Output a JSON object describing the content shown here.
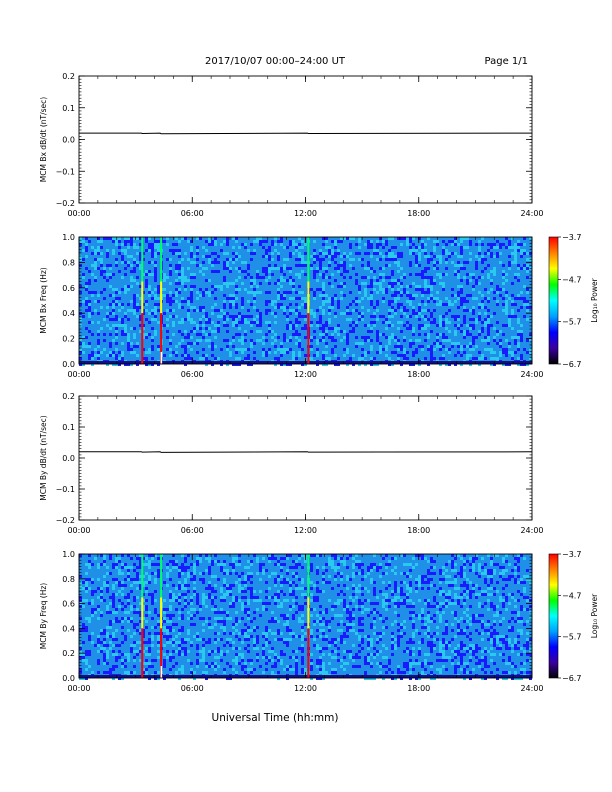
{
  "header": {
    "title": "2017/10/07  00:00–24:00 UT",
    "page": "Page 1/1"
  },
  "xlabel": "Universal Time (hh:mm)",
  "colors": {
    "trace": "#000000",
    "spectrogram_background": "#1f8fe8",
    "spectrogram_palette": [
      "#1a1aff",
      "#1f8fe8",
      "#29c9f0",
      "#00ff66",
      "#ffff00",
      "#ff0000"
    ],
    "colorbar": [
      "#000000",
      "#3a00a0",
      "#0000ff",
      "#00a0ff",
      "#00ffff",
      "#00ff00",
      "#ffff00",
      "#ff8000",
      "#ff0000"
    ]
  },
  "chart_data": [
    {
      "type": "line",
      "name": "bx_line",
      "ylabel": "MCM Bx dB/dt (nT/sec)",
      "xlim": [
        0,
        24
      ],
      "ylim": [
        -0.2,
        0.2
      ],
      "xticks": [
        "00:00",
        "06:00",
        "12:00",
        "18:00",
        "24:00"
      ],
      "yticks": [
        "0.2",
        "0.1",
        "0.0",
        "−0.1",
        "−0.2"
      ],
      "ytick_values": [
        0.2,
        0.1,
        0.0,
        -0.1,
        -0.2
      ],
      "series": [
        {
          "x": [
            0,
            3.3,
            3.35,
            4.3,
            4.35,
            12.1,
            12.15,
            24
          ],
          "y": [
            0.02,
            0.02,
            0.019,
            0.02,
            0.018,
            0.02,
            0.019,
            0.02
          ]
        }
      ]
    },
    {
      "type": "heatmap",
      "name": "bx_spectrogram",
      "ylabel": "MCM Bx Freq (Hz)",
      "zlabel": "Log₁₀ Power",
      "xlim": [
        0,
        24
      ],
      "ylim": [
        0,
        1.0
      ],
      "zlim": [
        -6.7,
        -3.7
      ],
      "xticks": [
        "00:00",
        "06:00",
        "12:00",
        "18:00",
        "24:00"
      ],
      "yticks": [
        "1.0",
        "0.8",
        "0.6",
        "0.4",
        "0.2",
        "0.0"
      ],
      "ytick_values": [
        1.0,
        0.8,
        0.6,
        0.4,
        0.2,
        0.0
      ],
      "colorbar_ticks": [
        "−3.7",
        "−4.7",
        "−5.7",
        "−6.7"
      ],
      "colorbar_tick_values": [
        -3.7,
        -4.7,
        -5.7,
        -6.7
      ],
      "events_ut_hours": [
        3.35,
        4.35,
        12.15
      ]
    },
    {
      "type": "line",
      "name": "by_line",
      "ylabel": "MCM By dB/dt (nT/sec)",
      "xlim": [
        0,
        24
      ],
      "ylim": [
        -0.2,
        0.2
      ],
      "xticks": [
        "00:00",
        "06:00",
        "12:00",
        "18:00",
        "24:00"
      ],
      "yticks": [
        "0.2",
        "0.1",
        "0.0",
        "−0.1",
        "−0.2"
      ],
      "ytick_values": [
        0.2,
        0.1,
        0.0,
        -0.1,
        -0.2
      ],
      "series": [
        {
          "x": [
            0,
            3.3,
            3.35,
            4.3,
            4.35,
            12.1,
            12.15,
            24
          ],
          "y": [
            0.02,
            0.02,
            0.019,
            0.02,
            0.018,
            0.02,
            0.019,
            0.02
          ]
        }
      ]
    },
    {
      "type": "heatmap",
      "name": "by_spectrogram",
      "ylabel": "MCM By Freq (Hz)",
      "zlabel": "Log₁₀ Power",
      "xlim": [
        0,
        24
      ],
      "ylim": [
        0,
        1.0
      ],
      "zlim": [
        -6.7,
        -3.7
      ],
      "xticks": [
        "00:00",
        "06:00",
        "12:00",
        "18:00",
        "24:00"
      ],
      "yticks": [
        "1.0",
        "0.8",
        "0.6",
        "0.4",
        "0.2",
        "0.0"
      ],
      "ytick_values": [
        1.0,
        0.8,
        0.6,
        0.4,
        0.2,
        0.0
      ],
      "colorbar_ticks": [
        "−3.7",
        "−4.7",
        "−5.7",
        "−6.7"
      ],
      "colorbar_tick_values": [
        -3.7,
        -4.7,
        -5.7,
        -6.7
      ],
      "events_ut_hours": [
        3.35,
        4.35,
        12.15
      ]
    }
  ]
}
